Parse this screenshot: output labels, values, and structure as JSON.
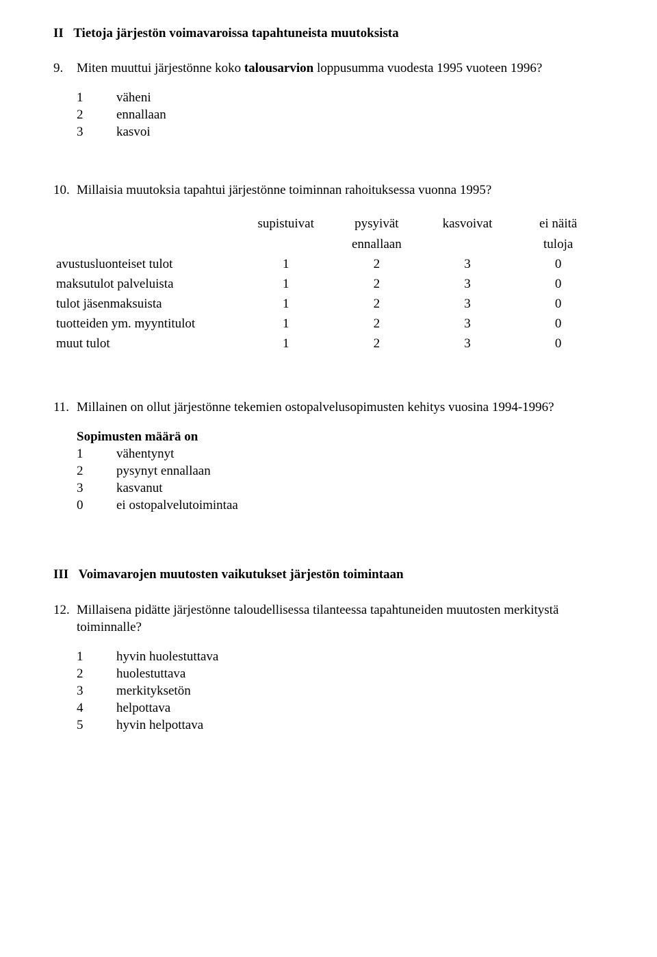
{
  "section2": {
    "roman": "II",
    "title": "Tietoja järjestön voimavaroissa tapahtuneista muutoksista"
  },
  "q9": {
    "num": "9.",
    "text": "Miten muuttui järjestönne koko",
    "bold_fragment": "talousarvion",
    "text_after": " loppusumma vuodesta 1995 vuoteen 1996?",
    "options": [
      {
        "n": "1",
        "l": "väheni"
      },
      {
        "n": "2",
        "l": "ennallaan"
      },
      {
        "n": "3",
        "l": "kasvoi"
      }
    ]
  },
  "q10": {
    "num": "10.",
    "text": "Millaisia muutoksia tapahtui järjestönne toiminnan rahoituksessa vuonna 1995?",
    "table": {
      "col_header_lines": [
        [
          "supistuivat",
          "pysyivät",
          "kasvoivat",
          "ei näitä"
        ],
        [
          "",
          "ennallaan",
          "",
          "tuloja"
        ]
      ],
      "rows": [
        {
          "label": "avustusluonteiset tulot",
          "vals": [
            "1",
            "2",
            "3",
            "0"
          ]
        },
        {
          "label": "maksutulot palveluista",
          "vals": [
            "1",
            "2",
            "3",
            "0"
          ]
        },
        {
          "label": "tulot jäsenmaksuista",
          "vals": [
            "1",
            "2",
            "3",
            "0"
          ]
        },
        {
          "label": "tuotteiden ym. myyntitulot",
          "vals": [
            "1",
            "2",
            "3",
            "0"
          ]
        },
        {
          "label": "muut tulot",
          "vals": [
            "1",
            "2",
            "3",
            "0"
          ]
        }
      ],
      "col_widths": [
        "34%",
        "16.5%",
        "16.5%",
        "16.5%",
        "16.5%"
      ]
    }
  },
  "q11": {
    "num": "11.",
    "text": "Millainen on ollut järjestönne tekemien ostopalvelusopimusten kehitys vuosina 1994-1996?",
    "heading": "Sopimusten määrä on",
    "options": [
      {
        "n": "1",
        "l": "vähentynyt"
      },
      {
        "n": "2",
        "l": "pysynyt ennallaan"
      },
      {
        "n": "3",
        "l": "kasvanut"
      },
      {
        "n": "0",
        "l": "ei ostopalvelutoimintaa"
      }
    ]
  },
  "section3": {
    "roman": "III",
    "title": "Voimavarojen muutosten vaikutukset järjestön toimintaan"
  },
  "q12": {
    "num": "12.",
    "text": "Millaisena pidätte järjestönne taloudellisessa tilanteessa tapahtuneiden muutosten merkitystä toiminnalle?",
    "options": [
      {
        "n": "1",
        "l": "hyvin huolestuttava"
      },
      {
        "n": "2",
        "l": "huolestuttava"
      },
      {
        "n": "3",
        "l": "merkityksetön"
      },
      {
        "n": "4",
        "l": "helpottava"
      },
      {
        "n": "5",
        "l": "hyvin helpottava"
      }
    ]
  }
}
